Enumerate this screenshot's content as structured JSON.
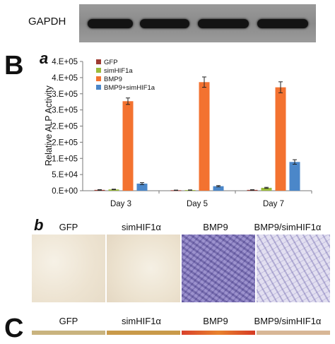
{
  "blot": {
    "label": "GAPDH"
  },
  "panels": {
    "B": "B",
    "a": "a",
    "b": "b",
    "C": "C"
  },
  "chart_data": {
    "type": "bar",
    "ylabel": "Relative ALP Activity",
    "ylim": [
      0,
      400000
    ],
    "yticks": [
      "0.E+00",
      "5.E+04",
      "1.E+05",
      "2.E+05",
      "2.E+05",
      "3.E+05",
      "3.E+05",
      "4.E+05",
      "4.E+05"
    ],
    "ytick_values": [
      0,
      50000,
      100000,
      150000,
      200000,
      250000,
      300000,
      350000,
      400000
    ],
    "categories": [
      "Day 3",
      "Day 5",
      "Day 7"
    ],
    "series": [
      {
        "name": "GFP",
        "color": "#9e3b33",
        "values": [
          2500,
          1500,
          2500
        ],
        "errors": [
          800,
          500,
          700
        ]
      },
      {
        "name": "simHIF1a",
        "color": "#9bbb3b",
        "values": [
          4000,
          2000,
          9000
        ],
        "errors": [
          800,
          500,
          1500
        ]
      },
      {
        "name": "BMP9",
        "color": "#f37230",
        "values": [
          277000,
          336000,
          320000
        ],
        "errors": [
          10000,
          16000,
          17000
        ]
      },
      {
        "name": "BMP9+simHIF1a",
        "color": "#4b87c9",
        "values": [
          22000,
          14000,
          89000
        ],
        "errors": [
          3000,
          2000,
          7000
        ]
      }
    ],
    "grid": false,
    "legend": "top-left"
  },
  "panel_b": {
    "labels": [
      "GFP",
      "simHIF1α",
      "BMP9",
      "BMP9/simHIF1α"
    ]
  },
  "panel_c": {
    "labels": [
      "GFP",
      "simHIF1α",
      "BMP9",
      "BMP9/simHIF1α"
    ]
  }
}
